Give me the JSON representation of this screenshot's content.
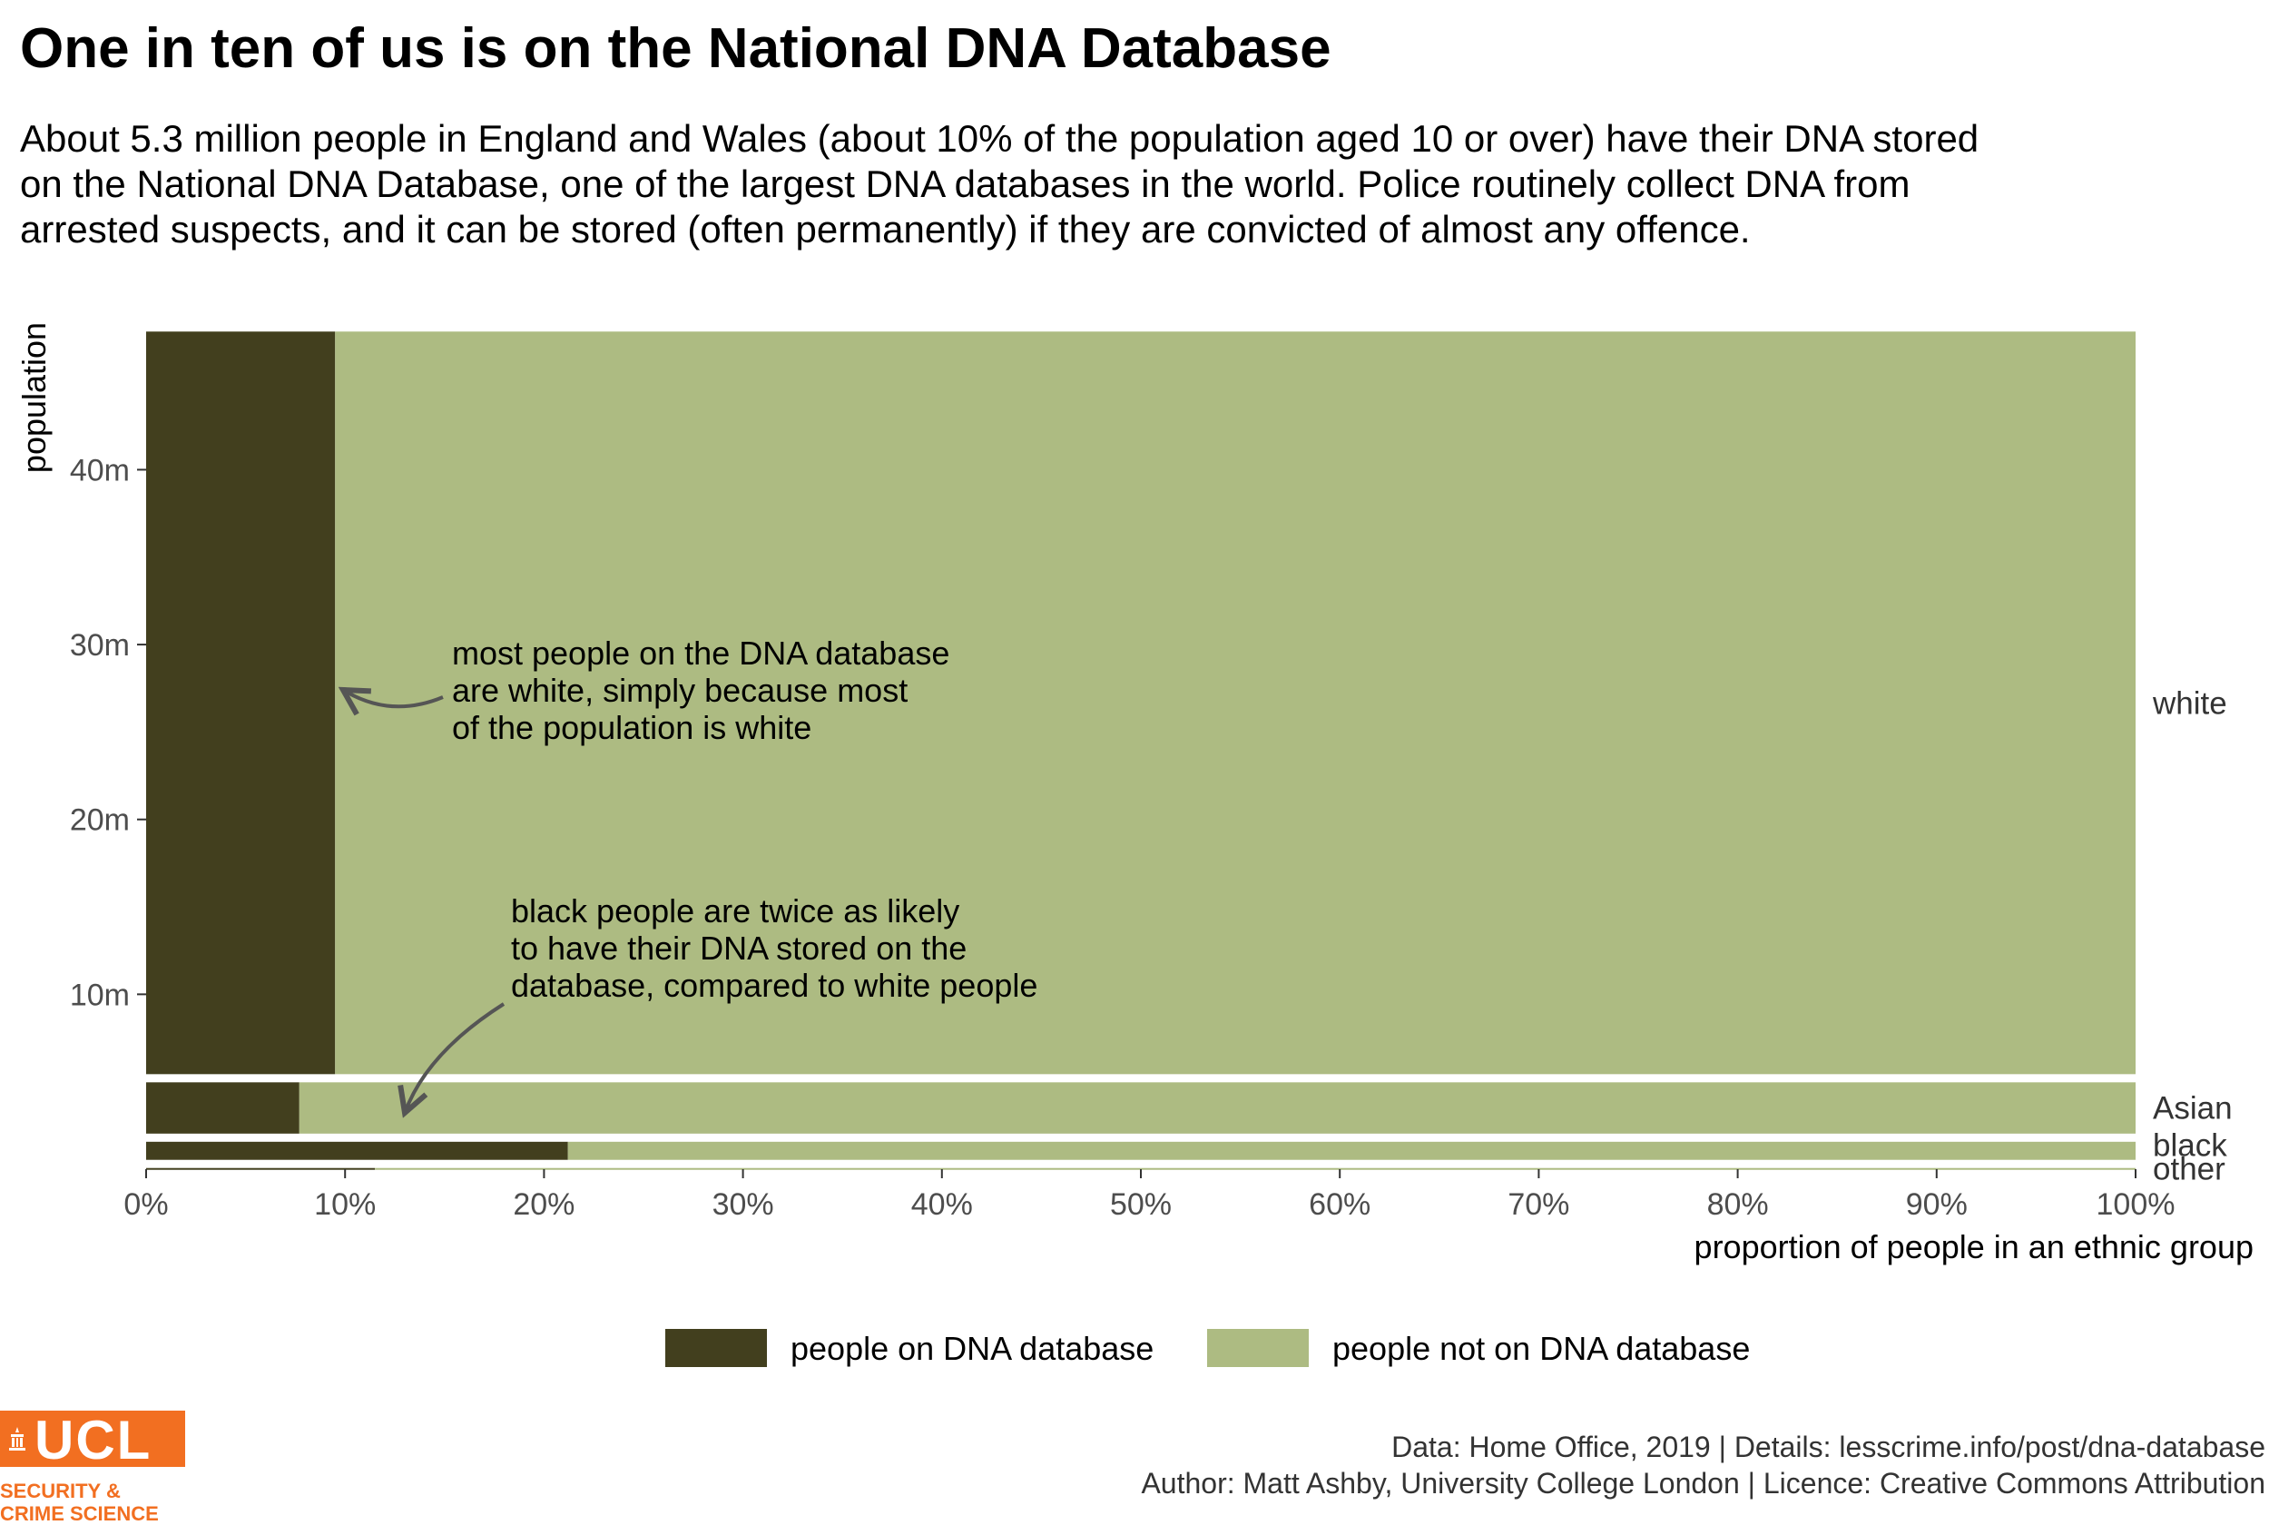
{
  "header": {
    "title": "One in ten of us is on the National DNA Database",
    "subtitle": "About 5.3 million people in England and Wales (about 10% of the population aged 10 or over) have their DNA stored on the National DNA Database, one of the largest DNA databases in the world. Police routinely collect DNA from arrested suspects, and it can be stored (often permanently) if they are convicted of almost any offence."
  },
  "chart_data": {
    "type": "bar",
    "subtype": "mosaic",
    "title": "One in ten of us is on the National DNA Database",
    "xlabel": "proportion of people in an ethnic group",
    "ylabel": "population",
    "x_ticks": [
      "0%",
      "10%",
      "20%",
      "30%",
      "40%",
      "50%",
      "60%",
      "70%",
      "80%",
      "90%",
      "100%"
    ],
    "y_ticks": [
      {
        "value": 10,
        "label": "10m"
      },
      {
        "value": 20,
        "label": "20m"
      },
      {
        "value": 30,
        "label": "30m"
      },
      {
        "value": 40,
        "label": "40m"
      }
    ],
    "xlim": [
      0,
      1
    ],
    "ylim": [
      0,
      48.9
    ],
    "categories": [
      "other",
      "black",
      "Asian",
      "white"
    ],
    "populations_m": [
      0.3,
      1.5,
      3.4,
      42.7
    ],
    "series": [
      {
        "name": "people on DNA database",
        "values": [
          0.115,
          0.212,
          0.077,
          0.095
        ],
        "color": "#423f1e"
      },
      {
        "name": "people not on DNA database",
        "values": [
          0.885,
          0.788,
          0.923,
          0.905
        ],
        "color": "#adbb82"
      }
    ],
    "annotations": [
      {
        "text": [
          "most people on the DNA database",
          "are white, simply because most",
          "of the population is white"
        ]
      },
      {
        "text": [
          "black people are twice as likely",
          "to have their DNA stored on the",
          "database, compared to white people"
        ]
      }
    ],
    "legend_position": "bottom",
    "grid": false
  },
  "legend": {
    "on_label": "people on DNA database",
    "off_label": "people not on DNA database"
  },
  "caption": {
    "line1": "Data: Home Office, 2019 |  Details: lesscrime.info/post/dna-database",
    "line2": "Author: Matt Ashby, University College London |  Licence: Creative Commons Attribution"
  },
  "logo": {
    "text": "UCL",
    "tagline": [
      "SECURITY &",
      "CRIME SCIENCE"
    ],
    "color": "#f26f21"
  }
}
